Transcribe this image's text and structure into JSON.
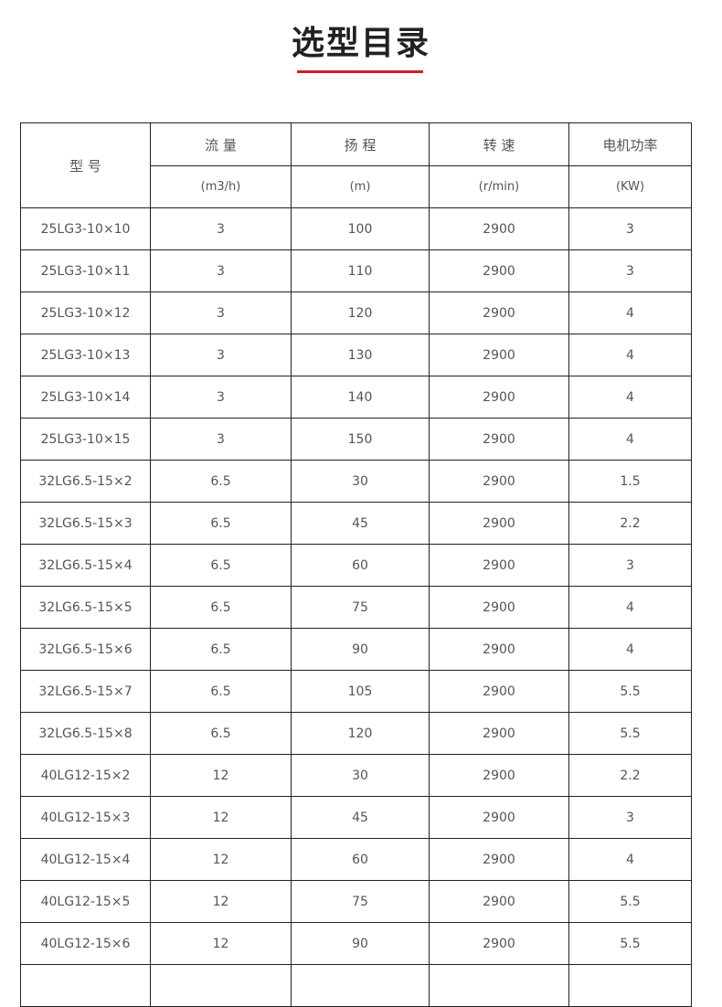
{
  "title": "选型目录",
  "accent_color": "#c8202f",
  "header": {
    "model": "型 号",
    "columns": [
      {
        "label": "流  量",
        "unit": "(m3/h)"
      },
      {
        "label": "扬  程",
        "unit": "(m)"
      },
      {
        "label": "转  速",
        "unit": "(r/min)"
      },
      {
        "label": "电机功率",
        "unit": "(KW)"
      }
    ]
  },
  "rows": [
    [
      "25LG3-10×10",
      "3",
      "100",
      "2900",
      "3"
    ],
    [
      "25LG3-10×11",
      "3",
      "110",
      "2900",
      "3"
    ],
    [
      "25LG3-10×12",
      "3",
      "120",
      "2900",
      "4"
    ],
    [
      "25LG3-10×13",
      "3",
      "130",
      "2900",
      "4"
    ],
    [
      "25LG3-10×14",
      "3",
      "140",
      "2900",
      "4"
    ],
    [
      "25LG3-10×15",
      "3",
      "150",
      "2900",
      "4"
    ],
    [
      "32LG6.5-15×2",
      "6.5",
      "30",
      "2900",
      "1.5"
    ],
    [
      "32LG6.5-15×3",
      "6.5",
      "45",
      "2900",
      "2.2"
    ],
    [
      "32LG6.5-15×4",
      "6.5",
      "60",
      "2900",
      "3"
    ],
    [
      "32LG6.5-15×5",
      "6.5",
      "75",
      "2900",
      "4"
    ],
    [
      "32LG6.5-15×6",
      "6.5",
      "90",
      "2900",
      "4"
    ],
    [
      "32LG6.5-15×7",
      "6.5",
      "105",
      "2900",
      "5.5"
    ],
    [
      "32LG6.5-15×8",
      "6.5",
      "120",
      "2900",
      "5.5"
    ],
    [
      "40LG12-15×2",
      "12",
      "30",
      "2900",
      "2.2"
    ],
    [
      "40LG12-15×3",
      "12",
      "45",
      "2900",
      "3"
    ],
    [
      "40LG12-15×4",
      "12",
      "60",
      "2900",
      "4"
    ],
    [
      "40LG12-15×5",
      "12",
      "75",
      "2900",
      "5.5"
    ],
    [
      "40LG12-15×6",
      "12",
      "90",
      "2900",
      "5.5"
    ]
  ]
}
